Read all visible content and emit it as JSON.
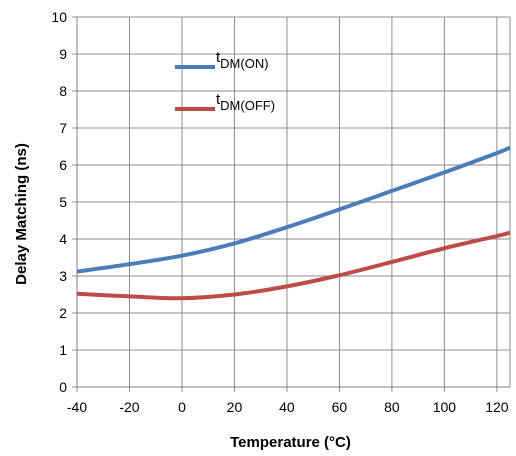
{
  "chart_data": {
    "type": "line",
    "xlabel": "Temperature (°C)",
    "ylabel": "Delay Matching (ns)",
    "xlim": [
      -40,
      125
    ],
    "ylim": [
      0,
      10
    ],
    "x_ticks": [
      -40,
      -20,
      0,
      20,
      40,
      60,
      80,
      100,
      120
    ],
    "y_ticks": [
      0,
      1,
      2,
      3,
      4,
      5,
      6,
      7,
      8,
      9,
      10
    ],
    "grid": true,
    "legend_position": "top-left inside",
    "x": [
      -40,
      -20,
      0,
      20,
      40,
      60,
      80,
      100,
      120,
      125
    ],
    "series": [
      {
        "name_main": "t",
        "name_sub": "DM(ON)",
        "color": "#4a7ebb",
        "values": [
          3.12,
          3.32,
          3.55,
          3.88,
          4.32,
          4.8,
          5.3,
          5.8,
          6.32,
          6.47
        ]
      },
      {
        "name_main": "t",
        "name_sub": "DM(OFF)",
        "color": "#be4b48",
        "values": [
          2.52,
          2.45,
          2.4,
          2.5,
          2.72,
          3.02,
          3.38,
          3.75,
          4.08,
          4.17
        ]
      }
    ]
  }
}
